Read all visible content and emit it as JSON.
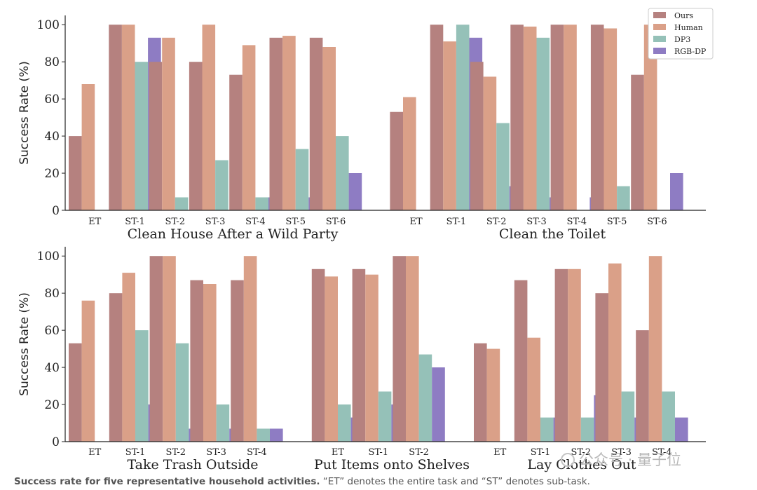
{
  "chart_data": {
    "type": "bar",
    "ylabel": "Success Rate (%)",
    "ylim": [
      0,
      105
    ],
    "yticks": [
      0,
      20,
      40,
      60,
      80,
      100
    ],
    "series_names": [
      "Ours",
      "Human",
      "DP3",
      "RGB-DP"
    ],
    "colors": {
      "Ours": "#b5817f",
      "Human": "#daa088",
      "DP3": "#95c1b8",
      "RGB-DP": "#8e7cc3"
    },
    "legend_position": "top-right",
    "panels": [
      {
        "row": "top",
        "groups": [
          {
            "title": "Clean House After a Wild Party",
            "categories": [
              "ET",
              "ST-1",
              "ST-2",
              "ST-3",
              "ST-4",
              "ST-5",
              "ST-6"
            ],
            "series": [
              {
                "name": "Ours",
                "values": [
                  40,
                  100,
                  80,
                  80,
                  73,
                  93,
                  93
                ]
              },
              {
                "name": "Human",
                "values": [
                  68,
                  100,
                  93,
                  100,
                  89,
                  94,
                  88
                ]
              },
              {
                "name": "DP3",
                "values": [
                  0,
                  80,
                  7,
                  27,
                  7,
                  33,
                  40
                ]
              },
              {
                "name": "RGB-DP",
                "values": [
                  0,
                  93,
                  0,
                  0,
                  7,
                  7,
                  20
                ]
              }
            ]
          },
          {
            "title": "Clean the Toilet",
            "categories": [
              "ET",
              "ST-1",
              "ST-2",
              "ST-3",
              "ST-4",
              "ST-5",
              "ST-6"
            ],
            "series": [
              {
                "name": "Ours",
                "values": [
                  53,
                  100,
                  80,
                  100,
                  100,
                  100,
                  73
                ]
              },
              {
                "name": "Human",
                "values": [
                  61,
                  91,
                  72,
                  99,
                  100,
                  98,
                  100
                ]
              },
              {
                "name": "DP3",
                "values": [
                  0,
                  100,
                  47,
                  93,
                  0,
                  13,
                  0
                ]
              },
              {
                "name": "RGB-DP",
                "values": [
                  0,
                  93,
                  13,
                  7,
                  7,
                  0,
                  20
                ]
              }
            ]
          }
        ]
      },
      {
        "row": "bottom",
        "groups": [
          {
            "title": "Take Trash Outside",
            "categories": [
              "ET",
              "ST-1",
              "ST-2",
              "ST-3",
              "ST-4"
            ],
            "series": [
              {
                "name": "Ours",
                "values": [
                  53,
                  80,
                  100,
                  87,
                  87
                ]
              },
              {
                "name": "Human",
                "values": [
                  76,
                  91,
                  100,
                  85,
                  100
                ]
              },
              {
                "name": "DP3",
                "values": [
                  0,
                  60,
                  53,
                  20,
                  7
                ]
              },
              {
                "name": "RGB-DP",
                "values": [
                  0,
                  20,
                  7,
                  7,
                  7
                ]
              }
            ]
          },
          {
            "title": "Put Items onto Shelves",
            "categories": [
              "ET",
              "ST-1",
              "ST-2"
            ],
            "series": [
              {
                "name": "Ours",
                "values": [
                  93,
                  93,
                  100
                ]
              },
              {
                "name": "Human",
                "values": [
                  89,
                  90,
                  100
                ]
              },
              {
                "name": "DP3",
                "values": [
                  20,
                  27,
                  47
                ]
              },
              {
                "name": "RGB-DP",
                "values": [
                  13,
                  20,
                  40
                ]
              }
            ]
          },
          {
            "title": "Lay Clothes Out",
            "categories": [
              "ET",
              "ST-1",
              "ST-2",
              "ST-3",
              "ST-4"
            ],
            "series": [
              {
                "name": "Ours",
                "values": [
                  53,
                  87,
                  93,
                  80,
                  60
                ]
              },
              {
                "name": "Human",
                "values": [
                  50,
                  56,
                  93,
                  96,
                  100
                ]
              },
              {
                "name": "DP3",
                "values": [
                  0,
                  13,
                  13,
                  27,
                  27
                ]
              },
              {
                "name": "RGB-DP",
                "values": [
                  0,
                  13,
                  25,
                  13,
                  13
                ]
              }
            ]
          }
        ]
      }
    ]
  },
  "caption": {
    "bold": "Success rate for five representative household activities.",
    "rest": " “ET” denotes the entire task and “ST” denotes sub-task."
  },
  "watermark": "公众号 · 量子位"
}
